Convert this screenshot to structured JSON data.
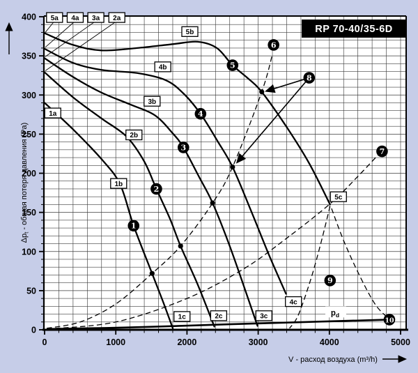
{
  "title": "RP 70-40/35-6D",
  "colors": {
    "background": "#c6cde8",
    "plot_bg": "#ffffff",
    "grid": "#3d3d3d",
    "ink": "#000000",
    "label_box_bg": "#ffffff",
    "title_bg": "#000000",
    "title_fg": "#ffffff"
  },
  "axes": {
    "x": {
      "label": "V - расход воздуха (m³/h)",
      "ticks": [
        0,
        1000,
        2000,
        3000,
        4000,
        5000
      ],
      "minor_step": 200,
      "range": [
        0,
        5080
      ]
    },
    "y": {
      "label_main": "Δp",
      "label_sub": "t",
      "label_rest": " - общая потеря давления (Pa)",
      "ticks": [
        0,
        50,
        100,
        150,
        200,
        250,
        300,
        350,
        400
      ],
      "minor_step": 10,
      "range": [
        0,
        400
      ]
    }
  },
  "chart_data": {
    "type": "line",
    "title": "RP 70-40/35-6D",
    "xlabel": "V - расход воздуха (m³/h)",
    "ylabel": "Δpt - общая потеря давления (Pa)",
    "xlim": [
      0,
      5080
    ],
    "ylim": [
      0,
      400
    ],
    "grid": true,
    "series": [
      {
        "name": "speed-1",
        "points": [
          [
            0,
            290
          ],
          [
            400,
            256
          ],
          [
            800,
            218
          ],
          [
            1060,
            186
          ],
          [
            1250,
            133
          ],
          [
            1510,
            72
          ],
          [
            1680,
            32
          ],
          [
            1800,
            2
          ]
        ],
        "labels": [
          {
            "text": "1a",
            "x": 115,
            "y": 277
          },
          {
            "text": "1b",
            "x": 1040,
            "y": 187
          },
          {
            "text": "1c",
            "x": 1930,
            "y": 17
          }
        ]
      },
      {
        "name": "speed-2",
        "points": [
          [
            0,
            329
          ],
          [
            400,
            297
          ],
          [
            800,
            270
          ],
          [
            1150,
            247
          ],
          [
            1400,
            215
          ],
          [
            1570,
            180
          ],
          [
            1760,
            142
          ],
          [
            1910,
            107
          ],
          [
            2150,
            58
          ],
          [
            2385,
            4
          ]
        ],
        "labels": [
          {
            "text": "2b",
            "x": 1255,
            "y": 249
          },
          {
            "text": "2c",
            "x": 2445,
            "y": 18
          }
        ]
      },
      {
        "name": "speed-3",
        "points": [
          [
            0,
            347
          ],
          [
            400,
            323
          ],
          [
            800,
            303
          ],
          [
            1200,
            288
          ],
          [
            1550,
            274
          ],
          [
            1800,
            251
          ],
          [
            1950,
            233
          ],
          [
            2160,
            197
          ],
          [
            2360,
            162
          ],
          [
            2620,
            102
          ],
          [
            2990,
            5
          ]
        ],
        "labels": [
          {
            "text": "3b",
            "x": 1510,
            "y": 292
          },
          {
            "text": "3c",
            "x": 3080,
            "y": 18
          }
        ]
      },
      {
        "name": "speed-4",
        "points": [
          [
            0,
            359
          ],
          [
            400,
            341
          ],
          [
            800,
            332
          ],
          [
            1300,
            328
          ],
          [
            1700,
            319
          ],
          [
            1950,
            302
          ],
          [
            2190,
            276
          ],
          [
            2430,
            241
          ],
          [
            2640,
            208
          ],
          [
            2900,
            152
          ],
          [
            3150,
            96
          ],
          [
            3390,
            46
          ]
        ],
        "labels": [
          {
            "text": "4b",
            "x": 1660,
            "y": 336
          },
          {
            "text": "4c",
            "x": 3495,
            "y": 36
          }
        ]
      },
      {
        "name": "speed-5",
        "points": [
          [
            0,
            379
          ],
          [
            400,
            364
          ],
          [
            800,
            357
          ],
          [
            1300,
            360
          ],
          [
            1800,
            365
          ],
          [
            2150,
            368
          ],
          [
            2420,
            360
          ],
          [
            2640,
            338
          ],
          [
            2860,
            321
          ],
          [
            3050,
            304
          ],
          [
            3400,
            259
          ],
          [
            3720,
            212
          ],
          [
            4010,
            160
          ]
        ],
        "labels": [
          {
            "text": "5b",
            "x": 2040,
            "y": 381
          },
          {
            "text": "5c",
            "x": 4127,
            "y": 170
          }
        ]
      }
    ],
    "top_labels": [
      {
        "text": "5a",
        "x": 140,
        "y": 399,
        "tx": 10,
        "ty": 380
      },
      {
        "text": "4a",
        "x": 430,
        "y": 399,
        "tx": 10,
        "ty": 361
      },
      {
        "text": "3a",
        "x": 720,
        "y": 399,
        "tx": 10,
        "ty": 349
      },
      {
        "text": "2a",
        "x": 1015,
        "y": 399,
        "tx": 10,
        "ty": 331
      }
    ],
    "dashed_curves": [
      {
        "name": "system-curve-steep",
        "points": [
          [
            30,
            2
          ],
          [
            500,
            10
          ],
          [
            1000,
            33
          ],
          [
            1510,
            72
          ],
          [
            1910,
            107
          ],
          [
            2360,
            162
          ],
          [
            2640,
            208
          ],
          [
            3050,
            304
          ],
          [
            3200,
            352
          ]
        ]
      },
      {
        "name": "system-curve-shallow",
        "points": [
          [
            30,
            1
          ],
          [
            1000,
            10
          ],
          [
            2000,
            40
          ],
          [
            2800,
            78
          ],
          [
            3400,
            117
          ],
          [
            4010,
            161
          ],
          [
            4400,
            196
          ],
          [
            4720,
            227
          ]
        ]
      },
      {
        "name": "boundary-left",
        "points": [
          [
            4010,
            158
          ],
          [
            3870,
            107
          ],
          [
            3730,
            62
          ],
          [
            3560,
            18
          ],
          [
            3440,
            2
          ]
        ]
      },
      {
        "name": "boundary-right",
        "points": [
          [
            4030,
            155
          ],
          [
            4200,
            114
          ],
          [
            4420,
            70
          ],
          [
            4640,
            33
          ],
          [
            4810,
            16
          ]
        ]
      }
    ],
    "pd_line": {
      "points": [
        [
          30,
          1
        ],
        [
          1200,
          3
        ],
        [
          2600,
          7
        ],
        [
          4843,
          13
        ]
      ]
    },
    "pd_label": {
      "main": "p",
      "sub": "d",
      "x": 4080,
      "y": 22
    },
    "operating_points": [
      {
        "x": 1510,
        "y": 72
      },
      {
        "x": 1910,
        "y": 107
      },
      {
        "x": 2360,
        "y": 162
      },
      {
        "x": 2640,
        "y": 208
      },
      {
        "x": 3050,
        "y": 304
      }
    ],
    "markers": [
      {
        "n": "1",
        "x": 1250,
        "y": 133
      },
      {
        "n": "2",
        "x": 1570,
        "y": 180
      },
      {
        "n": "3",
        "x": 1950,
        "y": 233
      },
      {
        "n": "4",
        "x": 2190,
        "y": 276
      },
      {
        "n": "5",
        "x": 2640,
        "y": 338
      },
      {
        "n": "6",
        "x": 3216,
        "y": 364
      },
      {
        "n": "7",
        "x": 4740,
        "y": 228
      },
      {
        "n": "8",
        "x": 3716,
        "y": 322
      },
      {
        "n": "9",
        "x": 4010,
        "y": 63
      },
      {
        "n": "10",
        "x": 4843,
        "y": 13
      }
    ],
    "arrows": [
      {
        "from": [
          3716,
          322
        ],
        "to": [
          3115,
          305
        ]
      },
      {
        "from": [
          3716,
          322
        ],
        "to": [
          2705,
          214
        ]
      }
    ]
  }
}
